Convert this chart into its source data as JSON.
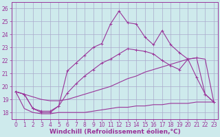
{
  "background_color": "#ceeaec",
  "grid_color": "#aaaacc",
  "line_color": "#993399",
  "xlabel": "Windchill (Refroidissement éolien,°C)",
  "xlabel_fontsize": 6.5,
  "tick_fontsize": 5.5,
  "xlim": [
    -0.5,
    23.5
  ],
  "ylim": [
    17.5,
    26.5
  ],
  "yticks": [
    18,
    19,
    20,
    21,
    22,
    23,
    24,
    25,
    26
  ],
  "xticks": [
    0,
    1,
    2,
    3,
    4,
    5,
    6,
    7,
    8,
    9,
    10,
    11,
    12,
    13,
    14,
    15,
    16,
    17,
    18,
    19,
    20,
    21,
    22,
    23
  ],
  "series_flat_x": [
    0,
    1,
    2,
    3,
    4,
    5,
    6,
    7,
    8,
    9,
    10,
    11,
    12,
    13,
    14,
    15,
    16,
    17,
    18,
    19,
    20,
    21,
    22,
    23
  ],
  "series_flat_y": [
    19.6,
    18.3,
    18.0,
    17.9,
    17.9,
    18.0,
    18.0,
    18.0,
    18.0,
    18.1,
    18.2,
    18.3,
    18.4,
    18.4,
    18.5,
    18.5,
    18.6,
    18.6,
    18.7,
    18.7,
    18.7,
    18.8,
    18.8,
    18.8
  ],
  "series_diag_x": [
    0,
    1,
    2,
    3,
    4,
    5,
    6,
    7,
    8,
    9,
    10,
    11,
    12,
    13,
    14,
    15,
    16,
    17,
    18,
    19,
    20,
    21,
    22,
    23
  ],
  "series_diag_y": [
    19.6,
    19.4,
    19.2,
    19.0,
    18.9,
    18.9,
    19.0,
    19.2,
    19.4,
    19.6,
    19.8,
    20.0,
    20.3,
    20.6,
    20.8,
    21.1,
    21.3,
    21.5,
    21.7,
    21.9,
    22.1,
    22.2,
    22.1,
    18.8
  ],
  "series_mid_x": [
    0,
    1,
    2,
    3,
    4,
    5,
    6,
    7,
    8,
    9,
    10,
    11,
    12,
    13,
    14,
    15,
    16,
    17,
    18,
    19,
    20,
    21,
    22,
    23
  ],
  "series_mid_y": [
    19.6,
    19.4,
    18.3,
    18.0,
    18.0,
    18.5,
    19.5,
    20.2,
    20.8,
    21.3,
    21.8,
    22.1,
    22.5,
    22.9,
    22.8,
    22.7,
    22.5,
    22.0,
    21.6,
    21.3,
    22.1,
    22.2,
    19.4,
    18.8
  ],
  "series_top_x": [
    0,
    1,
    2,
    3,
    4,
    5,
    6,
    7,
    8,
    9,
    10,
    11,
    12,
    13,
    14,
    15,
    16,
    17,
    18,
    19,
    20,
    21,
    22,
    23
  ],
  "series_top_y": [
    19.6,
    19.4,
    18.3,
    18.1,
    18.1,
    18.5,
    21.2,
    21.8,
    22.4,
    23.0,
    23.3,
    24.8,
    25.8,
    24.9,
    24.8,
    23.8,
    23.2,
    24.3,
    23.2,
    22.6,
    22.1,
    20.7,
    19.4,
    18.8
  ]
}
